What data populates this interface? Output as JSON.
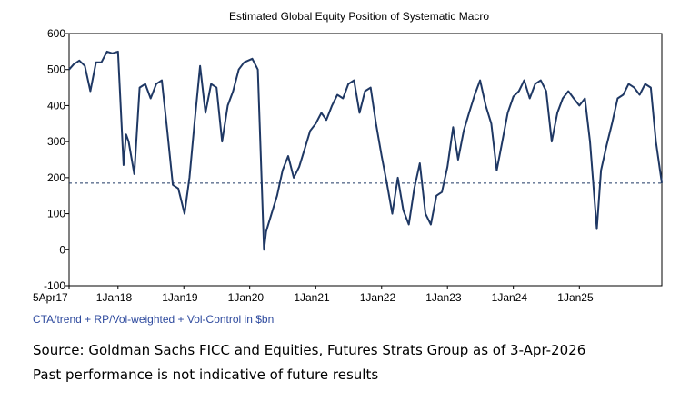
{
  "chart_data": {
    "type": "line",
    "title": "Estimated Global Equity Position of Systematic Macro",
    "subtitle": "CTA/trend + RP/Vol-weighted + Vol-Control in $bn",
    "notes": [
      "Source: Goldman Sachs FICC and Equities, Futures Strats Group as of 3-Apr-2026",
      "Past performance is not indicative of future results"
    ],
    "xlim": [
      "2017-04-05",
      "2026-04-03"
    ],
    "xticks": [
      {
        "value": "2017-04-05",
        "label": "5Apr17"
      },
      {
        "value": "2018-01-01",
        "label": "1Jan18"
      },
      {
        "value": "2019-01-01",
        "label": "1Jan19"
      },
      {
        "value": "2020-01-01",
        "label": "1Jan20"
      },
      {
        "value": "2021-01-01",
        "label": "1Jan21"
      },
      {
        "value": "2022-01-01",
        "label": "1Jan22"
      },
      {
        "value": "2023-01-01",
        "label": "1Jan23"
      },
      {
        "value": "2024-01-01",
        "label": "1Jan24"
      },
      {
        "value": "2025-01-01",
        "label": "1Jan25"
      }
    ],
    "ylim": [
      -100,
      600
    ],
    "yticks": [
      -100,
      0,
      100,
      200,
      300,
      400,
      500,
      600
    ],
    "reference_line": 185,
    "x": [
      "2017-04-05",
      "2017-05-01",
      "2017-06-01",
      "2017-07-01",
      "2017-08-01",
      "2017-09-01",
      "2017-10-01",
      "2017-11-01",
      "2017-12-01",
      "2018-01-01",
      "2018-02-01",
      "2018-02-15",
      "2018-03-01",
      "2018-04-01",
      "2018-05-01",
      "2018-06-01",
      "2018-07-01",
      "2018-08-01",
      "2018-09-01",
      "2018-10-01",
      "2018-11-01",
      "2018-12-01",
      "2019-01-05",
      "2019-02-01",
      "2019-03-01",
      "2019-04-01",
      "2019-05-01",
      "2019-06-01",
      "2019-07-01",
      "2019-08-01",
      "2019-09-01",
      "2019-10-01",
      "2019-11-01",
      "2019-12-01",
      "2020-01-15",
      "2020-02-15",
      "2020-03-20",
      "2020-04-01",
      "2020-05-01",
      "2020-06-01",
      "2020-07-01",
      "2020-08-01",
      "2020-09-01",
      "2020-10-01",
      "2020-11-01",
      "2020-12-01",
      "2021-01-01",
      "2021-02-01",
      "2021-03-01",
      "2021-04-01",
      "2021-05-01",
      "2021-06-01",
      "2021-07-01",
      "2021-08-01",
      "2021-09-01",
      "2021-10-01",
      "2021-11-01",
      "2021-12-01",
      "2022-01-01",
      "2022-02-01",
      "2022-03-01",
      "2022-04-01",
      "2022-05-01",
      "2022-06-01",
      "2022-07-01",
      "2022-08-01",
      "2022-09-01",
      "2022-10-01",
      "2022-11-01",
      "2022-12-01",
      "2023-01-01",
      "2023-02-01",
      "2023-03-01",
      "2023-04-01",
      "2023-05-01",
      "2023-06-01",
      "2023-07-01",
      "2023-08-01",
      "2023-09-01",
      "2023-10-01",
      "2023-11-01",
      "2023-12-01",
      "2024-01-01",
      "2024-02-01",
      "2024-03-01",
      "2024-04-01",
      "2024-05-01",
      "2024-06-01",
      "2024-07-01",
      "2024-08-01",
      "2024-09-01",
      "2024-10-01",
      "2024-11-01",
      "2024-12-01",
      "2025-01-01",
      "2025-02-01",
      "2025-03-01",
      "2025-04-08",
      "2025-05-01",
      "2025-06-01",
      "2025-07-01",
      "2025-08-01",
      "2025-09-01",
      "2025-10-01",
      "2025-11-01",
      "2025-12-01",
      "2026-01-01",
      "2026-02-01",
      "2026-03-01",
      "2026-04-03"
    ],
    "series": [
      {
        "name": "Equity position",
        "color": "#1f3864",
        "values": [
          500,
          515,
          525,
          510,
          440,
          520,
          520,
          550,
          545,
          550,
          235,
          320,
          300,
          210,
          450,
          460,
          420,
          460,
          470,
          330,
          180,
          170,
          100,
          200,
          350,
          510,
          380,
          460,
          450,
          300,
          400,
          440,
          500,
          520,
          530,
          500,
          0,
          50,
          100,
          150,
          220,
          260,
          200,
          230,
          280,
          330,
          350,
          380,
          360,
          400,
          430,
          420,
          460,
          470,
          380,
          440,
          450,
          350,
          260,
          180,
          100,
          200,
          110,
          70,
          170,
          240,
          100,
          70,
          150,
          160,
          230,
          340,
          250,
          330,
          380,
          430,
          470,
          400,
          350,
          220,
          300,
          380,
          425,
          440,
          470,
          420,
          460,
          470,
          440,
          300,
          380,
          420,
          440,
          420,
          400,
          420,
          300,
          57,
          220,
          290,
          350,
          420,
          430,
          460,
          450,
          430,
          460,
          450,
          300,
          185
        ]
      }
    ]
  }
}
